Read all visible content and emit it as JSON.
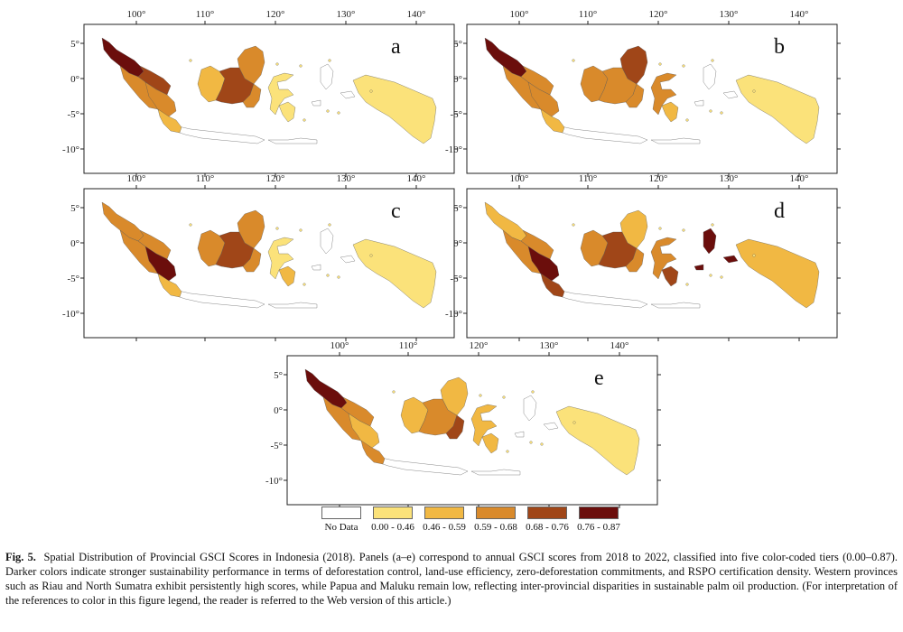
{
  "figure": {
    "legend": {
      "items": [
        {
          "label": "No Data",
          "color": "#ffffff"
        },
        {
          "label": "0.00 - 0.46",
          "color": "#fbe27a"
        },
        {
          "label": "0.46 - 0.59",
          "color": "#f1b843"
        },
        {
          "label": "0.59 - 0.68",
          "color": "#d98a2b"
        },
        {
          "label": "0.68 - 0.76",
          "color": "#a04618"
        },
        {
          "label": "0.76 - 0.87",
          "color": "#6b0e0c"
        }
      ]
    },
    "caption": {
      "prefix": "Fig. 5.",
      "text": "Spatial Distribution of Provincial GSCI Scores in Indonesia (2018). Panels (a–e) correspond to annual GSCI scores from 2018 to 2022, classified into five color-coded tiers (0.00–0.87). Darker colors indicate stronger sustainability performance in terms of deforestation control, land-use efficiency, zero-deforestation commitments, and RSPO certification density. Western provinces such as Riau and North Sumatra exhibit persistently high scores, while Papua and Maluku remain low, reflecting inter-provincial disparities in sustainable palm oil production. (For interpretation of the references to color in this figure legend, the reader is referred to the Web version of this article.)"
    },
    "axes": {
      "lon_ticks": [
        "100°",
        "110°",
        "120°",
        "130°",
        "140°"
      ],
      "lat_ticks": [
        "5°",
        "0°",
        "-5°",
        "-10°"
      ]
    },
    "panels": [
      {
        "label": "a",
        "regions": {
          "n_sumatra": 5,
          "c_sumatra": 4,
          "w_sumatra": 3,
          "s_sumatra": 3,
          "s_sumatra_se": 2,
          "w_kalimantan": 2,
          "kalimantan_east": 3,
          "c_kalimantan": 4,
          "s_kalimantan": 3,
          "sulawesi": 1,
          "sulawesi_south": 1,
          "maluku": 0,
          "papua": 1,
          "java": 0
        }
      },
      {
        "label": "b",
        "regions": {
          "n_sumatra": 5,
          "c_sumatra": 3,
          "w_sumatra": 3,
          "s_sumatra": 3,
          "s_sumatra_se": 2,
          "w_kalimantan": 3,
          "kalimantan_east": 4,
          "c_kalimantan": 3,
          "s_kalimantan": 3,
          "sulawesi": 3,
          "sulawesi_south": 2,
          "maluku": 0,
          "papua": 1,
          "java": 0
        }
      },
      {
        "label": "c",
        "regions": {
          "n_sumatra": 3,
          "c_sumatra": 3,
          "w_sumatra": 3,
          "s_sumatra": 5,
          "s_sumatra_se": 2,
          "w_kalimantan": 3,
          "kalimantan_east": 3,
          "c_kalimantan": 4,
          "s_kalimantan": 3,
          "sulawesi": 1,
          "sulawesi_south": 2,
          "maluku": 0,
          "papua": 1,
          "java": 0
        }
      },
      {
        "label": "d",
        "regions": {
          "n_sumatra": 2,
          "c_sumatra": 3,
          "w_sumatra": 3,
          "s_sumatra": 5,
          "s_sumatra_se": 4,
          "w_kalimantan": 3,
          "kalimantan_east": 2,
          "c_kalimantan": 4,
          "s_kalimantan": 3,
          "sulawesi": 3,
          "sulawesi_south": 4,
          "maluku": 5,
          "papua": 2,
          "java": 0
        }
      },
      {
        "label": "e",
        "regions": {
          "n_sumatra": 5,
          "c_sumatra": 3,
          "w_sumatra": 3,
          "s_sumatra": 2,
          "s_sumatra_se": 3,
          "w_kalimantan": 2,
          "kalimantan_east": 2,
          "c_kalimantan": 3,
          "s_kalimantan": 4,
          "sulawesi": 2,
          "sulawesi_south": 2,
          "maluku": 0,
          "papua": 1,
          "java": 0
        }
      }
    ]
  }
}
